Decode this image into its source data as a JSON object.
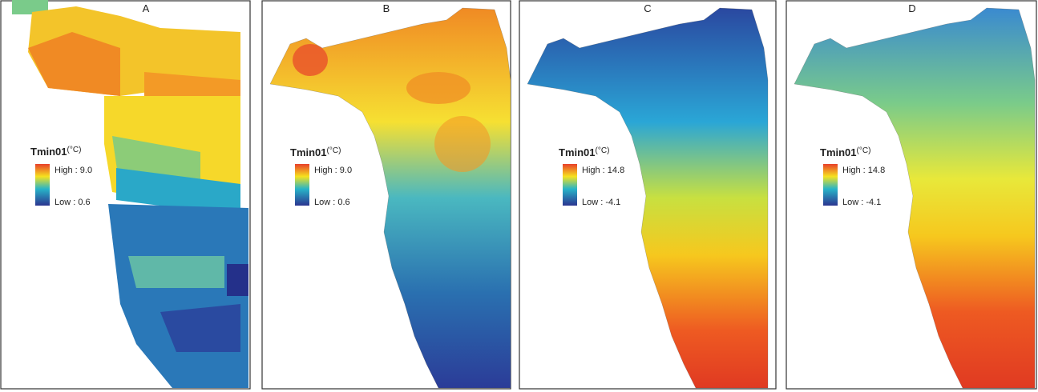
{
  "panels": [
    {
      "label": "A",
      "legend": {
        "title": "Tmin01",
        "unit": "(°C)",
        "high": "High : 9.0",
        "low": "Low : 0.6"
      }
    },
    {
      "label": "B",
      "legend": {
        "title": "Tmin01",
        "unit": "(°C)",
        "high": "High : 9.0",
        "low": "Low : 0.6"
      }
    },
    {
      "label": "C",
      "legend": {
        "title": "Tmin01",
        "unit": "(°C)",
        "high": "High : 14.8",
        "low": "Low : -4.1"
      }
    },
    {
      "label": "D",
      "legend": {
        "title": "Tmin01",
        "unit": "(°C)",
        "high": "High : 14.8",
        "low": "Low : -4.1"
      }
    }
  ]
}
